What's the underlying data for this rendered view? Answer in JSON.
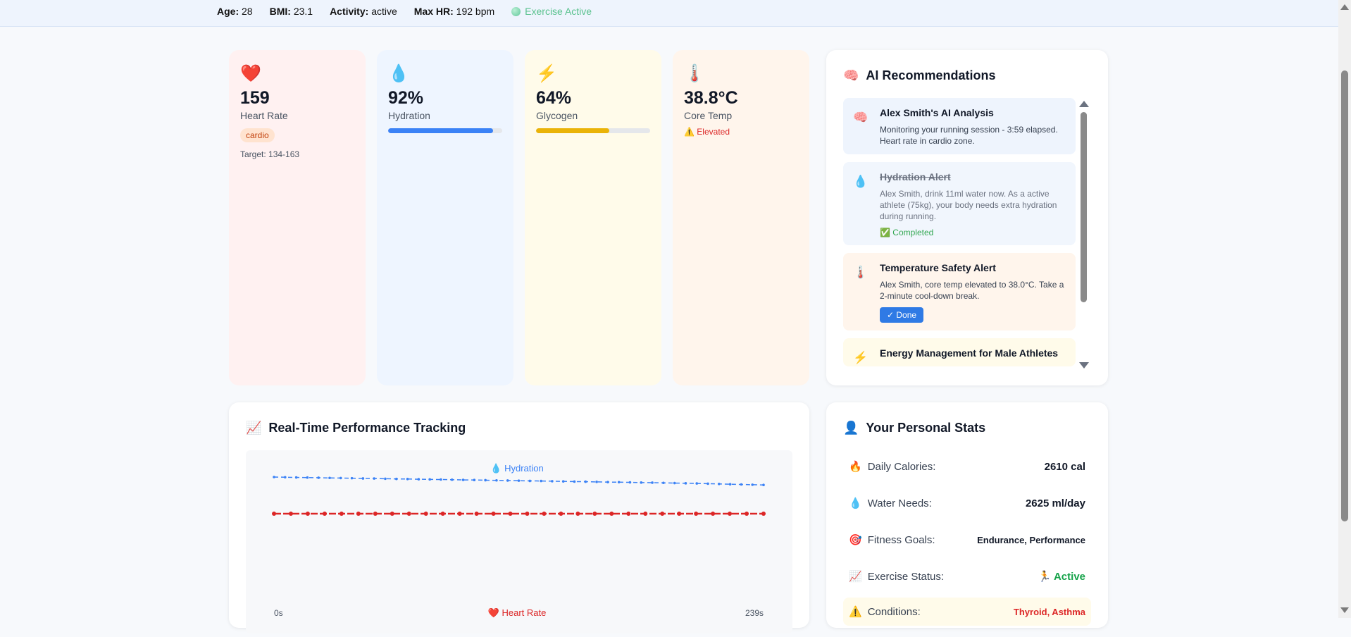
{
  "topbar": {
    "age_label": "Age:",
    "age": "28",
    "bmi_label": "BMI:",
    "bmi": "23.1",
    "activity_label": "Activity:",
    "activity": "active",
    "maxhr_label": "Max HR:",
    "maxhr": "192 bpm",
    "status": "Exercise Active"
  },
  "metrics": {
    "heart": {
      "icon": "❤️",
      "value": "159",
      "label": "Heart Rate",
      "zone": "cardio",
      "target": "Target: 134-163"
    },
    "hydration": {
      "icon": "💧",
      "value": "92%",
      "label": "Hydration",
      "level": 0.92,
      "color": "#3b82f6"
    },
    "glycogen": {
      "icon": "⚡",
      "value": "64%",
      "label": "Glycogen",
      "level": 0.64,
      "color": "#eab308"
    },
    "core": {
      "icon": "🌡️",
      "value": "38.8°C",
      "label": "Core Temp",
      "status_icon": "⚠️",
      "status": "Elevated"
    }
  },
  "ai": {
    "icon": "🧠",
    "title": "AI Recommendations",
    "items": [
      {
        "icon": "🧠",
        "title": "Alex Smith's AI Analysis",
        "body": "Monitoring your running session - 3:59 elapsed. Heart rate in cardio zone.",
        "bg": "#eef4fd"
      },
      {
        "icon": "💧",
        "title": "Hydration Alert",
        "body": "Alex Smith, drink 11ml water now. As a active athlete (75kg), your body needs extra hydration during running.",
        "status_icon": "✅",
        "status": "Completed",
        "bg": "#f1f6fd"
      },
      {
        "icon": "🌡️",
        "title": "Temperature Safety Alert",
        "body": "Alex Smith, core temp elevated to 38.0°C. Take a 2-minute cool-down break.",
        "button": "✓ Done",
        "bg": "#fff5ec"
      },
      {
        "icon": "⚡",
        "title": "Energy Management for Male Athletes",
        "body": "",
        "bg": "#fffbea"
      }
    ]
  },
  "performance": {
    "icon": "📈",
    "title": "Real-Time Performance Tracking"
  },
  "chart_data": {
    "type": "line",
    "title": "",
    "x_start_label": "0s",
    "x_end_label": "239s",
    "series": [
      {
        "name": "Hydration",
        "icon": "💧",
        "color": "#3b82f6",
        "style": "dashed",
        "values": [
          100,
          99.8,
          99.6,
          99.5,
          99.3,
          99.1,
          99.0,
          98.8,
          98.6,
          98.5,
          98.3,
          98.1,
          98.0,
          97.8,
          97.6,
          97.5,
          97.3,
          97.1,
          97.0,
          96.8,
          96.6,
          96.5,
          96.3,
          96.1,
          96.0,
          95.8,
          95.6,
          95.4,
          95.3,
          95.1,
          94.9,
          94.8,
          94.6,
          94.4,
          94.3,
          94.1,
          93.9,
          93.7,
          93.5,
          93.3,
          93.0,
          92.7,
          92.5,
          92.2,
          92.0
        ]
      },
      {
        "name": "Heart Rate",
        "icon": "❤️",
        "color": "#dc2626",
        "style": "solid",
        "values": [
          159,
          159,
          159,
          159,
          159,
          159,
          159,
          159,
          159,
          159,
          159,
          159,
          159,
          159,
          159,
          159,
          159,
          159,
          159,
          159,
          159,
          159,
          159,
          159,
          159,
          159,
          159,
          159,
          159,
          159
        ]
      }
    ]
  },
  "personal": {
    "icon": "👤",
    "title": "Your Personal Stats",
    "rows": [
      {
        "icon": "🔥",
        "label": "Daily Calories:",
        "value": "2610 cal",
        "color": "#111827"
      },
      {
        "icon": "💧",
        "label": "Water Needs:",
        "value": "2625 ml/day",
        "color": "#111827"
      },
      {
        "icon": "🎯",
        "label": "Fitness Goals:",
        "value": "Endurance, Performance",
        "color": "#111827"
      },
      {
        "icon": "📈",
        "label": "Exercise Status:",
        "value": "🏃 Active",
        "color": "#16a34a"
      },
      {
        "icon": "⚠️",
        "label": "Conditions:",
        "value": "Thyroid, Asthma",
        "color": "#dc2626"
      }
    ]
  }
}
